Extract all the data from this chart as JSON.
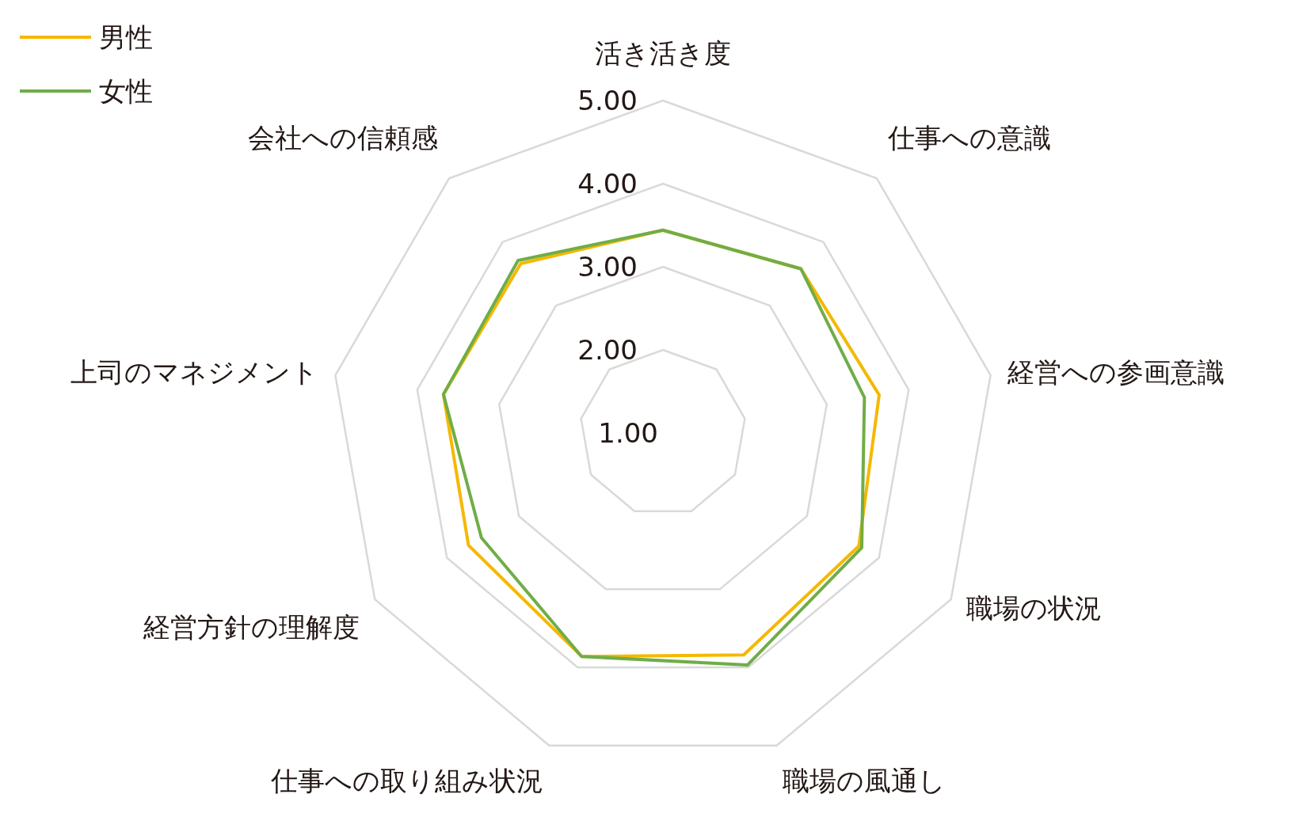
{
  "chart_data": {
    "type": "radar",
    "categories": [
      "活き活き度",
      "仕事への意識",
      "経営への参画意識",
      "職場の状況",
      "職場の風通し",
      "仕事への取り組み状況",
      "経営方針の理解度",
      "上司のマネジメント",
      "会社への信頼感"
    ],
    "series": [
      {
        "name": "男性",
        "color": "#f5b800",
        "values": [
          3.44,
          3.58,
          3.64,
          3.72,
          3.84,
          3.86,
          3.7,
          3.68,
          3.66
        ]
      },
      {
        "name": "女性",
        "color": "#70ad47",
        "values": [
          3.44,
          3.58,
          3.46,
          3.76,
          3.97,
          3.86,
          3.52,
          3.68,
          3.71
        ]
      }
    ],
    "ylim": [
      1,
      5
    ],
    "yticks": [
      {
        "value": 1,
        "label": "1.00"
      },
      {
        "value": 2,
        "label": "2.00"
      },
      {
        "value": 3,
        "label": "3.00"
      },
      {
        "value": 4,
        "label": "4.00"
      },
      {
        "value": 5,
        "label": "5.00"
      }
    ],
    "grid": true,
    "legend": "top left"
  }
}
